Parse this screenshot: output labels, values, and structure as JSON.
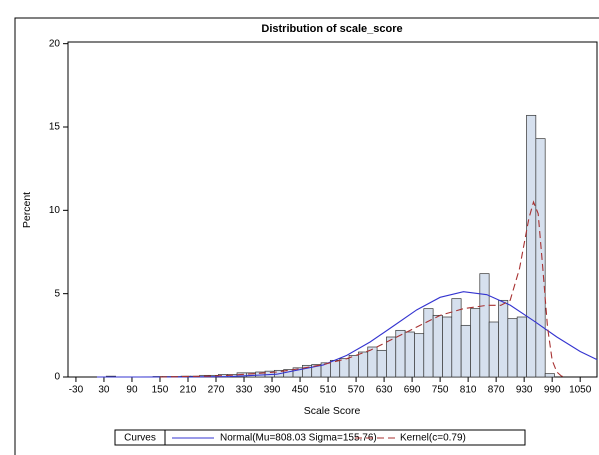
{
  "chart_data": {
    "type": "histogram",
    "title": "Distribution of scale_score",
    "xlabel": "Scale Score",
    "ylabel": "Percent",
    "bins": [
      15,
      35,
      55,
      75,
      95,
      115,
      135,
      155,
      175,
      195,
      215,
      235,
      255,
      275,
      295,
      315,
      335,
      355,
      375,
      395,
      415,
      435,
      455,
      475,
      495,
      515,
      535,
      555,
      575,
      595,
      615,
      635,
      655,
      675,
      695,
      715,
      735,
      755,
      775,
      795,
      815,
      835,
      855,
      875,
      895,
      915,
      935,
      955,
      975,
      995
    ],
    "values": [
      0,
      0.05,
      0,
      0,
      0,
      0,
      0.03,
      0.03,
      0.03,
      0.05,
      0.05,
      0.1,
      0.1,
      0.15,
      0.15,
      0.25,
      0.25,
      0.3,
      0.35,
      0.4,
      0.45,
      0.55,
      0.7,
      0.75,
      0.85,
      1.0,
      1.1,
      1.3,
      1.5,
      1.8,
      1.6,
      2.4,
      2.8,
      2.7,
      2.6,
      4.1,
      3.7,
      3.6,
      4.7,
      3.1,
      4.1,
      6.2,
      3.3,
      4.6,
      3.5,
      3.6,
      15.7,
      14.3,
      0.2
    ],
    "color": "#d6e0ee",
    "xlim": [
      -47,
      1086
    ],
    "ylim": [
      0,
      20.1
    ],
    "xticks": [
      -30,
      30,
      90,
      150,
      210,
      270,
      330,
      390,
      450,
      510,
      570,
      630,
      690,
      750,
      810,
      870,
      930,
      990,
      1050
    ],
    "yticks": [
      0,
      5,
      10,
      15,
      20
    ],
    "legend_title": "Curves",
    "curves": [
      {
        "name": "Normal(Mu=808.03 Sigma=155.76)",
        "color": "#3434d0",
        "line_style": "solid",
        "x": [
          15,
          100,
          200,
          300,
          400,
          500,
          550,
          600,
          650,
          700,
          750,
          800,
          850,
          900,
          950,
          1000,
          1050,
          1086
        ],
        "values": [
          0,
          0.0002,
          0.0025,
          0.025,
          0.166,
          0.724,
          1.3,
          2.1,
          3.06,
          4.03,
          4.78,
          5.12,
          4.94,
          4.31,
          3.38,
          2.4,
          1.53,
          1.04
        ]
      },
      {
        "name": "Kernel(c=0.79)",
        "color": "#a83232",
        "line_style": "dashed",
        "x": [
          150,
          250,
          300,
          350,
          400,
          450,
          500,
          550,
          600,
          650,
          700,
          750,
          800,
          850,
          880,
          900,
          920,
          940,
          950,
          960,
          970,
          980,
          990,
          1000,
          1010,
          1020
        ],
        "values": [
          0,
          0.05,
          0.1,
          0.2,
          0.3,
          0.5,
          0.75,
          1.1,
          1.6,
          2.3,
          3.0,
          3.7,
          4.1,
          4.3,
          4.3,
          4.6,
          6.5,
          9.5,
          10.5,
          9.8,
          6.5,
          3.0,
          1.0,
          0.3,
          0.05,
          0
        ]
      }
    ]
  }
}
